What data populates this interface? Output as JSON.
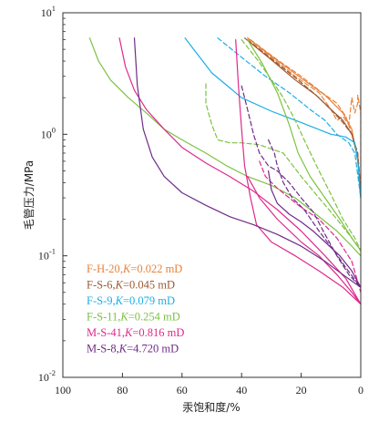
{
  "chart_data": {
    "type": "line",
    "title": "",
    "xlabel": "汞饱和度/%",
    "ylabel": "毛管压力/MPa",
    "x_axis": {
      "reversed": true,
      "range": [
        100,
        0
      ],
      "ticks": [
        100,
        80,
        60,
        40,
        20,
        0
      ],
      "tick_labels": [
        "100",
        "80",
        "60",
        "40",
        "20",
        "0"
      ]
    },
    "y_axis": {
      "scale": "log",
      "range": [
        0.01,
        10
      ],
      "ticks": [
        0.01,
        0.1,
        1,
        10
      ],
      "tick_labels": [
        {
          "base": "10",
          "exp": "-2"
        },
        {
          "base": "10",
          "exp": "-1"
        },
        {
          "base": "10",
          "exp": "0"
        },
        {
          "base": "10",
          "exp": "1"
        }
      ]
    },
    "grid": false,
    "legend_position": "bottom-left",
    "legend": [
      {
        "sample": "F-H-20",
        "sep": ",",
        "k_symbol": "K",
        "k_text": "=0.022 mD",
        "color": "#e8823a"
      },
      {
        "sample": "F-S-6",
        "sep": ",",
        "k_symbol": "K",
        "k_text": "=0.045 mD",
        "color": "#9c5a32"
      },
      {
        "sample": "F-S-9",
        "sep": ",",
        "k_symbol": "K",
        "k_text": "=0.079 mD",
        "color": "#19aee6"
      },
      {
        "sample": "F-S-11",
        "sep": ",",
        "k_symbol": "K",
        "k_text": "=0.254 mD",
        "color": "#7cc242"
      },
      {
        "sample": "M-S-41",
        "sep": ",",
        "k_symbol": "K",
        "k_text": "=0.816 mD",
        "color": "#e0288c"
      },
      {
        "sample": "M-S-8",
        "sep": ",",
        "k_symbol": "K",
        "k_text": "=4.720 mD",
        "color": "#6f2c87"
      }
    ],
    "series": [
      {
        "name": "F-H-20",
        "color": "#e8823a",
        "dash": false,
        "points": [
          [
            38,
            6.2
          ],
          [
            30,
            4.4
          ],
          [
            20,
            2.9
          ],
          [
            12,
            2.1
          ],
          [
            6,
            1.5
          ],
          [
            3,
            1.1
          ],
          [
            1,
            0.6
          ],
          [
            0,
            0.3
          ]
        ]
      },
      {
        "name": "F-H-20",
        "color": "#e8823a",
        "dash": true,
        "points": [
          [
            38,
            6.2
          ],
          [
            30,
            4.3
          ],
          [
            22,
            3.0
          ],
          [
            14,
            2.2
          ],
          [
            10,
            1.6
          ],
          [
            8,
            1.3
          ],
          [
            6,
            1.4
          ],
          [
            4,
            1.2
          ],
          [
            3,
            2.0
          ],
          [
            2,
            1.5
          ],
          [
            1,
            1.8
          ],
          [
            1,
            2.1
          ],
          [
            0,
            1.5
          ],
          [
            0,
            0.3
          ]
        ]
      },
      {
        "name": "F-H-20",
        "color": "#e8823a",
        "dash": true,
        "points": [
          [
            37,
            6.0
          ],
          [
            28,
            4.1
          ],
          [
            20,
            3.0
          ],
          [
            13,
            2.2
          ],
          [
            8,
            1.8
          ],
          [
            5,
            1.4
          ],
          [
            3,
            1.0
          ],
          [
            1,
            0.7
          ],
          [
            0,
            0.35
          ]
        ]
      },
      {
        "name": "F-S-6",
        "color": "#9c5a32",
        "dash": false,
        "points": [
          [
            39,
            6.2
          ],
          [
            30,
            4.1
          ],
          [
            22,
            2.8
          ],
          [
            15,
            2.1
          ],
          [
            10,
            1.6
          ],
          [
            6,
            1.3
          ],
          [
            3,
            1.0
          ],
          [
            1,
            0.65
          ],
          [
            0,
            0.3
          ]
        ]
      },
      {
        "name": "F-S-6",
        "color": "#9c5a32",
        "dash": true,
        "points": [
          [
            38,
            6.0
          ],
          [
            29,
            4.0
          ],
          [
            21,
            2.8
          ],
          [
            14,
            2.0
          ],
          [
            9,
            1.5
          ],
          [
            6,
            1.25
          ],
          [
            3,
            1.0
          ],
          [
            1,
            0.7
          ],
          [
            0,
            0.33
          ]
        ]
      },
      {
        "name": "F-S-9",
        "color": "#19aee6",
        "dash": false,
        "points": [
          [
            59,
            6.2
          ],
          [
            50,
            3.2
          ],
          [
            40,
            2.0
          ],
          [
            30,
            1.55
          ],
          [
            20,
            1.25
          ],
          [
            10,
            1.0
          ],
          [
            5,
            0.95
          ],
          [
            2,
            0.85
          ],
          [
            1,
            0.6
          ],
          [
            0,
            0.3
          ]
        ]
      },
      {
        "name": "F-S-9",
        "color": "#19aee6",
        "dash": true,
        "points": [
          [
            48,
            6.2
          ],
          [
            40,
            4.3
          ],
          [
            32,
            3.0
          ],
          [
            24,
            2.2
          ],
          [
            17,
            1.6
          ],
          [
            12,
            1.3
          ],
          [
            8,
            1.0
          ],
          [
            4,
            0.85
          ],
          [
            2,
            0.7
          ],
          [
            0,
            0.3
          ]
        ]
      },
      {
        "name": "F-S-11",
        "color": "#7cc242",
        "dash": false,
        "points": [
          [
            91,
            6.2
          ],
          [
            88,
            4.0
          ],
          [
            84,
            2.8
          ],
          [
            78,
            2.0
          ],
          [
            72,
            1.5
          ],
          [
            66,
            1.1
          ],
          [
            60,
            0.9
          ],
          [
            52,
            0.7
          ],
          [
            45,
            0.55
          ],
          [
            38,
            0.45
          ],
          [
            30,
            0.38
          ],
          [
            22,
            0.3
          ],
          [
            15,
            0.22
          ],
          [
            8,
            0.16
          ],
          [
            3,
            0.12
          ],
          [
            0,
            0.1
          ]
        ]
      },
      {
        "name": "F-S-11",
        "color": "#7cc242",
        "dash": false,
        "points": [
          [
            38,
            6.0
          ],
          [
            33,
            3.8
          ],
          [
            28,
            2.2
          ],
          [
            24,
            1.2
          ],
          [
            21,
            0.7
          ],
          [
            17,
            0.45
          ],
          [
            12,
            0.3
          ],
          [
            7,
            0.2
          ],
          [
            3,
            0.14
          ],
          [
            0,
            0.11
          ]
        ]
      },
      {
        "name": "F-S-11",
        "color": "#7cc242",
        "dash": true,
        "points": [
          [
            52,
            2.6
          ],
          [
            52,
            1.8
          ],
          [
            50,
            1.2
          ],
          [
            48,
            0.9
          ],
          [
            44,
            0.85
          ],
          [
            40,
            0.85
          ],
          [
            34,
            0.82
          ],
          [
            26,
            0.7
          ],
          [
            20,
            0.45
          ],
          [
            14,
            0.3
          ],
          [
            8,
            0.2
          ],
          [
            3,
            0.14
          ],
          [
            0,
            0.11
          ]
        ]
      },
      {
        "name": "F-S-11",
        "color": "#7cc242",
        "dash": true,
        "points": [
          [
            40,
            6.0
          ],
          [
            34,
            3.9
          ],
          [
            30,
            2.8
          ],
          [
            26,
            2.0
          ],
          [
            22,
            1.3
          ],
          [
            18,
            0.8
          ],
          [
            14,
            0.5
          ],
          [
            10,
            0.32
          ],
          [
            6,
            0.2
          ],
          [
            2,
            0.14
          ],
          [
            0,
            0.11
          ]
        ]
      },
      {
        "name": "M-S-41",
        "color": "#e0288c",
        "dash": false,
        "points": [
          [
            81,
            6.2
          ],
          [
            79,
            3.6
          ],
          [
            76,
            2.3
          ],
          [
            72,
            1.6
          ],
          [
            66,
            1.1
          ],
          [
            60,
            0.78
          ],
          [
            52,
            0.58
          ],
          [
            44,
            0.45
          ],
          [
            36,
            0.34
          ],
          [
            28,
            0.24
          ],
          [
            20,
            0.16
          ],
          [
            12,
            0.1
          ],
          [
            5,
            0.065
          ],
          [
            0,
            0.04
          ]
        ]
      },
      {
        "name": "M-S-41",
        "color": "#e0288c",
        "dash": false,
        "points": [
          [
            42,
            6.0
          ],
          [
            41,
            2.4
          ],
          [
            40,
            1.1
          ],
          [
            39,
            0.55
          ],
          [
            37,
            0.3
          ],
          [
            35,
            0.18
          ],
          [
            30,
            0.13
          ],
          [
            22,
            0.1
          ],
          [
            14,
            0.075
          ],
          [
            6,
            0.055
          ],
          [
            0,
            0.04
          ]
        ]
      },
      {
        "name": "M-S-41",
        "color": "#e0288c",
        "dash": true,
        "points": [
          [
            34,
            0.6
          ],
          [
            32,
            0.45
          ],
          [
            28,
            0.36
          ],
          [
            24,
            0.3
          ],
          [
            20,
            0.25
          ],
          [
            14,
            0.2
          ],
          [
            8,
            0.14
          ],
          [
            3,
            0.09
          ],
          [
            0,
            0.05
          ]
        ]
      },
      {
        "name": "M-S-41",
        "color": "#e0288c",
        "dash": false,
        "points": [
          [
            38,
            0.45
          ],
          [
            34,
            0.3
          ],
          [
            28,
            0.2
          ],
          [
            20,
            0.13
          ],
          [
            14,
            0.1
          ],
          [
            8,
            0.07
          ],
          [
            3,
            0.05
          ],
          [
            0,
            0.04
          ]
        ]
      },
      {
        "name": "M-S-8",
        "color": "#6f2c87",
        "dash": false,
        "points": [
          [
            76,
            6.2
          ],
          [
            75,
            2.5
          ],
          [
            73,
            1.1
          ],
          [
            70,
            0.65
          ],
          [
            66,
            0.45
          ],
          [
            60,
            0.33
          ],
          [
            52,
            0.26
          ],
          [
            44,
            0.21
          ],
          [
            36,
            0.18
          ],
          [
            28,
            0.15
          ],
          [
            20,
            0.12
          ],
          [
            12,
            0.09
          ],
          [
            6,
            0.07
          ],
          [
            0,
            0.055
          ]
        ]
      },
      {
        "name": "M-S-8",
        "color": "#6f2c87",
        "dash": true,
        "points": [
          [
            40,
            2.5
          ],
          [
            38,
            1.6
          ],
          [
            36,
            1.0
          ],
          [
            34,
            0.7
          ],
          [
            31,
            0.55
          ],
          [
            28,
            0.5
          ],
          [
            24,
            0.4
          ],
          [
            20,
            0.3
          ],
          [
            16,
            0.23
          ],
          [
            12,
            0.15
          ],
          [
            8,
            0.1
          ],
          [
            4,
            0.07
          ],
          [
            0,
            0.055
          ]
        ]
      },
      {
        "name": "M-S-8",
        "color": "#6f2c87",
        "dash": true,
        "points": [
          [
            31,
            0.9
          ],
          [
            29,
            0.7
          ],
          [
            28,
            0.55
          ],
          [
            26,
            0.4
          ],
          [
            23,
            0.3
          ],
          [
            19,
            0.24
          ],
          [
            14,
            0.16
          ],
          [
            9,
            0.11
          ],
          [
            5,
            0.08
          ],
          [
            0,
            0.055
          ]
        ]
      },
      {
        "name": "M-S-8",
        "color": "#6f2c87",
        "dash": false,
        "points": [
          [
            31,
            0.5
          ],
          [
            30,
            0.35
          ],
          [
            28,
            0.27
          ],
          [
            24,
            0.22
          ],
          [
            20,
            0.19
          ],
          [
            16,
            0.16
          ],
          [
            12,
            0.13
          ],
          [
            7,
            0.1
          ],
          [
            3,
            0.075
          ],
          [
            0,
            0.055
          ]
        ]
      }
    ]
  }
}
